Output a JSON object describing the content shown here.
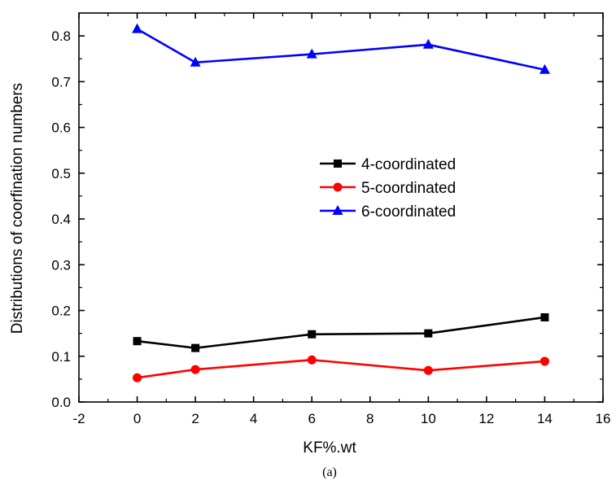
{
  "chart_data": {
    "type": "line",
    "title": "",
    "caption": "(a)",
    "xlabel": "KF%.wt",
    "ylabel": "Distributions of coorfination numbers",
    "xlim": [
      -2,
      16
    ],
    "ylim": [
      0.0,
      0.85
    ],
    "xticks": [
      -2,
      0,
      2,
      4,
      6,
      8,
      10,
      12,
      14,
      16
    ],
    "yticks": [
      0.0,
      0.1,
      0.2,
      0.3,
      0.4,
      0.5,
      0.6,
      0.7,
      0.8
    ],
    "xtick_labels": [
      "-2",
      "0",
      "2",
      "4",
      "6",
      "8",
      "10",
      "12",
      "14",
      "16"
    ],
    "ytick_labels": [
      "0.0",
      "0.1",
      "0.2",
      "0.3",
      "0.4",
      "0.5",
      "0.6",
      "0.7",
      "0.8"
    ],
    "grid": false,
    "legend_position": "center-right",
    "x": [
      0,
      2,
      6,
      10,
      14
    ],
    "series": [
      {
        "name": "4-coordinated",
        "values": [
          0.133,
          0.118,
          0.148,
          0.15,
          0.185
        ],
        "color": "#000000",
        "marker": "square"
      },
      {
        "name": "5-coordinated",
        "values": [
          0.053,
          0.071,
          0.092,
          0.069,
          0.089
        ],
        "color": "#ff0000",
        "marker": "circle"
      },
      {
        "name": "6-coordinated",
        "values": [
          0.815,
          0.742,
          0.76,
          0.781,
          0.726
        ],
        "color": "#0000ff",
        "marker": "triangle"
      }
    ]
  }
}
